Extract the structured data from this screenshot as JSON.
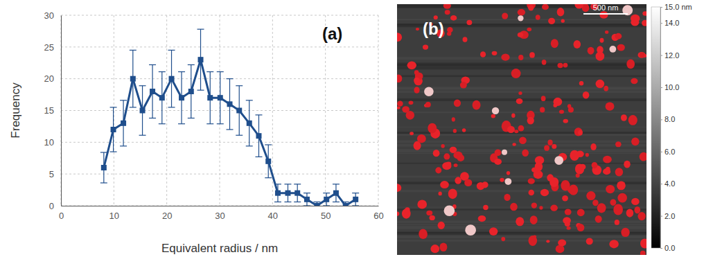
{
  "chart_data": [
    {
      "type": "line",
      "panel_label": "(a)",
      "x_label": "Equivalent radius / nm",
      "y_label": "Frequency",
      "x": [
        8.1,
        9.9,
        11.8,
        13.6,
        15.4,
        17.3,
        19.1,
        20.9,
        22.8,
        24.6,
        26.4,
        28.2,
        30.1,
        31.9,
        33.7,
        35.6,
        37.4,
        39.2,
        41.0,
        42.9,
        44.7,
        46.5,
        48.4,
        50.2,
        52.0,
        53.8,
        55.7
      ],
      "values": [
        6,
        12,
        13,
        20,
        15,
        18,
        17,
        20,
        17,
        18,
        23,
        17,
        17,
        16,
        15,
        13,
        11,
        7,
        2,
        2,
        2,
        1,
        0,
        1,
        2,
        0,
        1
      ],
      "errors": [
        2.4,
        3.5,
        3.6,
        4.5,
        3.9,
        4.2,
        4.1,
        4.5,
        4.1,
        4.2,
        4.8,
        4.1,
        4.1,
        4.0,
        3.9,
        3.6,
        3.3,
        2.6,
        1.4,
        1.4,
        1.4,
        1.0,
        0.6,
        1.0,
        1.4,
        0.6,
        1.0
      ],
      "color": "#1f4e8c",
      "marker": "square",
      "grid": true,
      "xlim": [
        0,
        60
      ],
      "xticks": [
        0,
        10,
        20,
        30,
        40,
        50,
        60
      ],
      "ylim": [
        0,
        30
      ],
      "yticks": [
        0,
        5,
        10,
        15,
        20,
        25,
        30
      ]
    },
    {
      "type": "image",
      "panel_label": "(b)",
      "scale_bar": "500 nm",
      "colorbar": {
        "range": [
          0,
          15
        ],
        "ticks": [
          {
            "value": 0,
            "label": "0.0"
          },
          {
            "value": 2,
            "label": "2.0"
          },
          {
            "value": 4,
            "label": "4.0"
          },
          {
            "value": 6,
            "label": "6.0"
          },
          {
            "value": 8,
            "label": "8.0"
          },
          {
            "value": 10,
            "label": "10.0"
          },
          {
            "value": 12,
            "label": "12.0"
          },
          {
            "value": 14,
            "label": "14.0"
          },
          {
            "value": 15,
            "label": "15.0 nm"
          }
        ]
      }
    }
  ]
}
